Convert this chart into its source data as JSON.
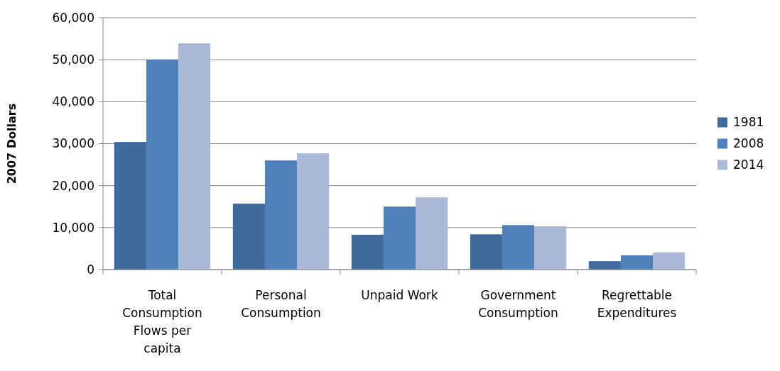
{
  "chart_data": {
    "type": "bar",
    "ylabel": "2007 Dollars",
    "categories": [
      "Total Consumption Flows per capita",
      "Personal Consumption",
      "Unpaid Work",
      "Government Consumption",
      "Regrettable Expenditures"
    ],
    "series": [
      {
        "name": "1981",
        "color": "#3f6a9a",
        "values": [
          30400,
          15700,
          8300,
          8400,
          2000
        ]
      },
      {
        "name": "2008",
        "color": "#4f81bd",
        "values": [
          50000,
          26000,
          15000,
          10600,
          3400
        ]
      },
      {
        "name": "2014",
        "color": "#aab9d8",
        "values": [
          53900,
          27700,
          17200,
          10300,
          4100
        ]
      }
    ],
    "ylim": [
      0,
      60000
    ],
    "yticks": [
      {
        "value": 0,
        "label": "0"
      },
      {
        "value": 10000,
        "label": "10,000"
      },
      {
        "value": 20000,
        "label": "20,000"
      },
      {
        "value": 30000,
        "label": "30,000"
      },
      {
        "value": 40000,
        "label": "40,000"
      },
      {
        "value": 50000,
        "label": "50,000"
      },
      {
        "value": 60000,
        "label": "60,000"
      }
    ],
    "grid": "y",
    "legend": "right"
  }
}
